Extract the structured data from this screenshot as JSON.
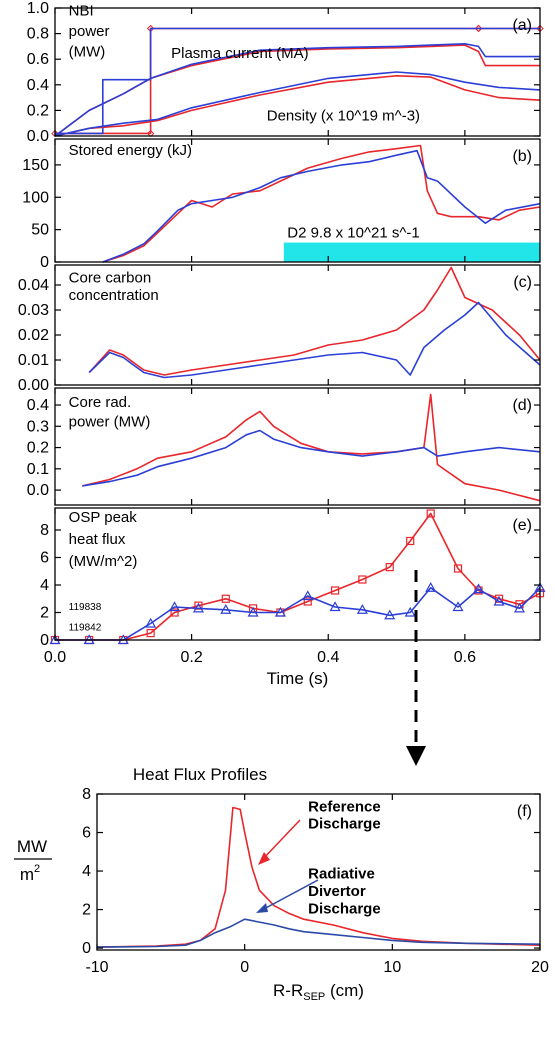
{
  "chart_data": [
    {
      "id": "a",
      "type": "line",
      "panel_label": "(a)",
      "xlim": [
        0,
        0.71
      ],
      "ylim": [
        0,
        1.0
      ],
      "yticks": [
        "0.0",
        "0.2",
        "0.4",
        "0.6",
        "0.8",
        "1.0"
      ],
      "yticks_v": [
        0,
        0.2,
        0.4,
        0.6,
        0.8,
        1.0
      ],
      "annotations": [
        {
          "text": "NBI",
          "x": 0.02,
          "y": 0.94
        },
        {
          "text": "power",
          "x": 0.02,
          "y": 0.78
        },
        {
          "text": "(MW)",
          "x": 0.02,
          "y": 0.62
        },
        {
          "text": "Plasma current (MA)",
          "x": 0.17,
          "y": 0.61
        },
        {
          "text": "Density (x 10^19 m^-3)",
          "x": 0.31,
          "y": 0.12
        }
      ],
      "series": [
        {
          "color": "#e8262b",
          "x": [
            0.0,
            0.14,
            0.14,
            0.62,
            0.62,
            0.71
          ],
          "y": [
            0.02,
            0.02,
            0.84,
            0.84,
            0.84,
            0.84
          ],
          "markers": "diamond"
        },
        {
          "color": "#2b3fd6",
          "x": [
            0.0,
            0.07,
            0.07,
            0.14,
            0.14,
            0.62,
            0.62,
            0.71
          ],
          "y": [
            0.02,
            0.02,
            0.44,
            0.44,
            0.84,
            0.84,
            0.84,
            0.84
          ]
        },
        {
          "color": "#e8262b",
          "x": [
            0.0,
            0.05,
            0.1,
            0.14,
            0.2,
            0.3,
            0.4,
            0.5,
            0.55,
            0.6,
            0.62,
            0.63,
            0.71
          ],
          "y": [
            0.0,
            0.2,
            0.33,
            0.45,
            0.55,
            0.66,
            0.68,
            0.69,
            0.7,
            0.71,
            0.66,
            0.55,
            0.55
          ]
        },
        {
          "color": "#2b3fd6",
          "x": [
            0.0,
            0.05,
            0.1,
            0.14,
            0.2,
            0.3,
            0.4,
            0.5,
            0.55,
            0.6,
            0.62,
            0.63,
            0.71
          ],
          "y": [
            0.0,
            0.2,
            0.33,
            0.45,
            0.56,
            0.67,
            0.69,
            0.7,
            0.71,
            0.72,
            0.7,
            0.62,
            0.62
          ]
        },
        {
          "color": "#e8262b",
          "x": [
            0.0,
            0.05,
            0.1,
            0.15,
            0.2,
            0.3,
            0.4,
            0.5,
            0.55,
            0.6,
            0.65,
            0.71
          ],
          "y": [
            0.0,
            0.06,
            0.08,
            0.12,
            0.2,
            0.32,
            0.42,
            0.47,
            0.46,
            0.36,
            0.3,
            0.28
          ]
        },
        {
          "color": "#2b3fd6",
          "x": [
            0.0,
            0.05,
            0.1,
            0.15,
            0.2,
            0.3,
            0.4,
            0.5,
            0.55,
            0.6,
            0.65,
            0.71
          ],
          "y": [
            0.0,
            0.06,
            0.1,
            0.13,
            0.22,
            0.34,
            0.45,
            0.5,
            0.48,
            0.42,
            0.38,
            0.36
          ]
        }
      ]
    },
    {
      "id": "b",
      "type": "line",
      "panel_label": "(b)",
      "xlim": [
        0,
        0.71
      ],
      "ylim": [
        0,
        190
      ],
      "yticks": [
        "0",
        "50",
        "100",
        "150"
      ],
      "yticks_v": [
        0,
        50,
        100,
        150
      ],
      "annotations": [
        {
          "text": "Stored energy (kJ)",
          "x": 0.02,
          "y": 165
        },
        {
          "text": "D2 9.8 x 10^21 s^-1",
          "x": 0.34,
          "y": 38
        }
      ],
      "bar": {
        "x0": 0.335,
        "x1": 0.71,
        "y0": 0,
        "y1": 30,
        "color": "#22e5ea"
      },
      "series": [
        {
          "color": "#e8262b",
          "x": [
            0.07,
            0.1,
            0.13,
            0.15,
            0.18,
            0.2,
            0.23,
            0.26,
            0.3,
            0.33,
            0.37,
            0.42,
            0.46,
            0.5,
            0.535,
            0.545,
            0.56,
            0.58,
            0.62,
            0.65,
            0.68,
            0.71
          ],
          "y": [
            0,
            10,
            25,
            45,
            75,
            95,
            85,
            105,
            110,
            125,
            145,
            160,
            170,
            175,
            180,
            110,
            75,
            70,
            70,
            65,
            80,
            85
          ]
        },
        {
          "color": "#2b3fd6",
          "x": [
            0.07,
            0.1,
            0.13,
            0.15,
            0.18,
            0.2,
            0.23,
            0.26,
            0.3,
            0.33,
            0.37,
            0.42,
            0.46,
            0.5,
            0.53,
            0.545,
            0.56,
            0.6,
            0.63,
            0.66,
            0.71
          ],
          "y": [
            0,
            12,
            28,
            48,
            80,
            90,
            95,
            100,
            115,
            130,
            140,
            150,
            155,
            165,
            172,
            130,
            125,
            85,
            60,
            80,
            90
          ]
        }
      ]
    },
    {
      "id": "c",
      "type": "line",
      "panel_label": "(c)",
      "xlim": [
        0,
        0.71
      ],
      "ylim": [
        0,
        0.048
      ],
      "yticks": [
        "0.00",
        "0.01",
        "0.02",
        "0.03",
        "0.04"
      ],
      "yticks_v": [
        0,
        0.01,
        0.02,
        0.03,
        0.04
      ],
      "annotations": [
        {
          "text": "Core carbon",
          "x": 0.02,
          "y": 0.041
        },
        {
          "text": "concentration",
          "x": 0.02,
          "y": 0.034
        }
      ],
      "series": [
        {
          "color": "#e8262b",
          "x": [
            0.05,
            0.08,
            0.1,
            0.13,
            0.16,
            0.2,
            0.25,
            0.3,
            0.35,
            0.4,
            0.45,
            0.5,
            0.54,
            0.56,
            0.58,
            0.6,
            0.64,
            0.68,
            0.71
          ],
          "y": [
            0.005,
            0.014,
            0.012,
            0.006,
            0.004,
            0.006,
            0.008,
            0.01,
            0.012,
            0.016,
            0.018,
            0.022,
            0.03,
            0.038,
            0.047,
            0.035,
            0.03,
            0.02,
            0.01
          ]
        },
        {
          "color": "#2b3fd6",
          "x": [
            0.05,
            0.08,
            0.1,
            0.13,
            0.16,
            0.2,
            0.25,
            0.3,
            0.35,
            0.4,
            0.45,
            0.5,
            0.52,
            0.54,
            0.57,
            0.6,
            0.62,
            0.66,
            0.71
          ],
          "y": [
            0.005,
            0.013,
            0.011,
            0.005,
            0.003,
            0.004,
            0.006,
            0.008,
            0.01,
            0.012,
            0.013,
            0.01,
            0.004,
            0.015,
            0.022,
            0.028,
            0.033,
            0.02,
            0.008
          ]
        }
      ]
    },
    {
      "id": "d",
      "type": "line",
      "panel_label": "(d)",
      "xlim": [
        0,
        0.71
      ],
      "ylim": [
        -0.07,
        0.48
      ],
      "yticks": [
        "0.0",
        "0.1",
        "0.2",
        "0.3",
        "0.4"
      ],
      "yticks_v": [
        0,
        0.1,
        0.2,
        0.3,
        0.4
      ],
      "annotations": [
        {
          "text": "Core rad.",
          "x": 0.02,
          "y": 0.39
        },
        {
          "text": "power (MW)",
          "x": 0.02,
          "y": 0.3
        }
      ],
      "series": [
        {
          "color": "#e8262b",
          "x": [
            0.04,
            0.08,
            0.12,
            0.15,
            0.2,
            0.25,
            0.28,
            0.3,
            0.32,
            0.36,
            0.4,
            0.45,
            0.5,
            0.54,
            0.55,
            0.56,
            0.6,
            0.65,
            0.71
          ],
          "y": [
            0.02,
            0.05,
            0.1,
            0.15,
            0.18,
            0.25,
            0.33,
            0.37,
            0.3,
            0.22,
            0.18,
            0.17,
            0.18,
            0.2,
            0.45,
            0.12,
            0.03,
            0.0,
            -0.05
          ]
        },
        {
          "color": "#2b3fd6",
          "x": [
            0.04,
            0.08,
            0.12,
            0.15,
            0.2,
            0.25,
            0.28,
            0.3,
            0.32,
            0.36,
            0.4,
            0.45,
            0.5,
            0.54,
            0.56,
            0.6,
            0.65,
            0.71
          ],
          "y": [
            0.02,
            0.04,
            0.07,
            0.11,
            0.15,
            0.2,
            0.26,
            0.28,
            0.24,
            0.2,
            0.18,
            0.16,
            0.18,
            0.2,
            0.16,
            0.18,
            0.2,
            0.18
          ]
        }
      ]
    },
    {
      "id": "e",
      "type": "line",
      "panel_label": "(e)",
      "xlim": [
        0,
        0.71
      ],
      "ylim": [
        0,
        9.6
      ],
      "yticks": [
        "0",
        "2",
        "4",
        "6",
        "8"
      ],
      "yticks_v": [
        0,
        2,
        4,
        6,
        8
      ],
      "xticks": [
        "0.0",
        "0.2",
        "0.4",
        "0.6"
      ],
      "xticks_v": [
        0,
        0.2,
        0.4,
        0.6
      ],
      "xlabel": "Time (s)",
      "annotations": [
        {
          "text": "OSP peak",
          "x": 0.02,
          "y": 8.6
        },
        {
          "text": "heat flux",
          "x": 0.02,
          "y": 7.0
        },
        {
          "text": "(MW/m^2)",
          "x": 0.02,
          "y": 5.4
        }
      ],
      "small_labels": [
        {
          "text": "119838",
          "x": 0.02,
          "y": 2.2
        },
        {
          "text": "119842",
          "x": 0.02,
          "y": 0.7
        }
      ],
      "series": [
        {
          "color": "#e8262b",
          "markers": "square",
          "x": [
            0.0,
            0.05,
            0.1,
            0.14,
            0.175,
            0.21,
            0.25,
            0.29,
            0.33,
            0.37,
            0.41,
            0.45,
            0.49,
            0.52,
            0.55,
            0.59,
            0.62,
            0.65,
            0.68,
            0.71
          ],
          "y": [
            0.0,
            0.0,
            0.0,
            0.5,
            2.0,
            2.5,
            3.0,
            2.3,
            2.0,
            2.8,
            3.6,
            4.4,
            5.3,
            7.2,
            9.2,
            5.2,
            3.6,
            3.0,
            2.6,
            3.4
          ]
        },
        {
          "color": "#2b3fd6",
          "markers": "triangle",
          "x": [
            0.0,
            0.05,
            0.1,
            0.14,
            0.175,
            0.21,
            0.25,
            0.29,
            0.33,
            0.37,
            0.41,
            0.45,
            0.49,
            0.52,
            0.55,
            0.59,
            0.62,
            0.65,
            0.68,
            0.71
          ],
          "y": [
            0.0,
            0.0,
            0.0,
            1.2,
            2.4,
            2.3,
            2.2,
            2.0,
            2.0,
            3.2,
            2.4,
            2.2,
            1.8,
            2.0,
            3.8,
            2.4,
            3.7,
            2.8,
            2.3,
            3.8
          ]
        }
      ]
    },
    {
      "id": "f",
      "type": "line",
      "panel_label": "(f)",
      "title": "Heat Flux Profiles",
      "xlim": [
        -10,
        20
      ],
      "ylim": [
        -0.1,
        8
      ],
      "yticks": [
        "0",
        "2",
        "4",
        "6",
        "8"
      ],
      "yticks_v": [
        0,
        2,
        4,
        6,
        8
      ],
      "xticks": [
        "-10",
        "0",
        "10",
        "20"
      ],
      "xticks_v": [
        -10,
        0,
        10,
        20
      ],
      "xlabel": "R-R",
      "xlabel_sub": "SEP",
      "xlabel_unit": " (cm)",
      "ylabel_num": "MW",
      "ylabel_den": "m",
      "ylabel_sup": "2",
      "annotations": [
        {
          "text": "Reference",
          "x": 4.3,
          "y": 7.1,
          "color": "#e8262b"
        },
        {
          "text": "Discharge",
          "x": 4.3,
          "y": 6.2,
          "color": "#e8262b"
        },
        {
          "text": "Radiative",
          "x": 4.3,
          "y": 3.6,
          "color": "#2b4aa6"
        },
        {
          "text": "Divertor",
          "x": 4.3,
          "y": 2.7,
          "color": "#2b4aa6"
        },
        {
          "text": "Discharge",
          "x": 4.3,
          "y": 1.8,
          "color": "#2b4aa6"
        }
      ],
      "series": [
        {
          "color": "#e8262b",
          "x": [
            -10,
            -6,
            -4,
            -3,
            -2,
            -1.3,
            -0.8,
            -0.3,
            0,
            0.5,
            1,
            2,
            3,
            4,
            6,
            8,
            10,
            12,
            15,
            20
          ],
          "y": [
            0.05,
            0.1,
            0.2,
            0.4,
            1.0,
            3.0,
            7.3,
            7.2,
            6.0,
            4.2,
            3.0,
            2.2,
            1.8,
            1.5,
            1.2,
            0.8,
            0.5,
            0.35,
            0.25,
            0.15
          ]
        },
        {
          "color": "#2b4aa6",
          "x": [
            -10,
            -6,
            -4,
            -3,
            -2,
            -1,
            0,
            1,
            2,
            3,
            4,
            6,
            8,
            10,
            12,
            15,
            20
          ],
          "y": [
            0.05,
            0.08,
            0.15,
            0.4,
            0.8,
            1.1,
            1.5,
            1.35,
            1.2,
            1.0,
            0.85,
            0.7,
            0.55,
            0.4,
            0.3,
            0.25,
            0.2
          ]
        }
      ]
    }
  ]
}
